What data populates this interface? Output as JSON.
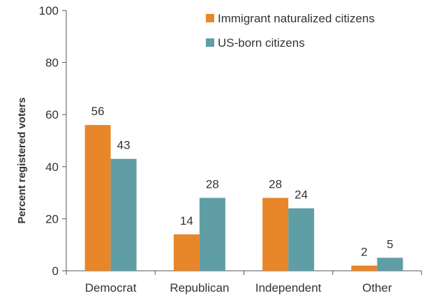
{
  "chart_data": {
    "type": "bar",
    "categories": [
      "Democrat",
      "Republican",
      "Independent",
      "Other"
    ],
    "series": [
      {
        "name": "Immigrant naturalized citizens",
        "values": [
          56,
          14,
          28,
          2
        ],
        "color": "#e8862a"
      },
      {
        "name": "US-born citizens",
        "values": [
          43,
          28,
          24,
          5
        ],
        "color": "#5f9ea5"
      }
    ],
    "ylabel": "Percent registered voters",
    "xlabel": "",
    "ylim": [
      0,
      100
    ],
    "yticks": [
      "0",
      "20",
      "40",
      "60",
      "80",
      "100"
    ],
    "data_labels": [
      [
        "56",
        "14",
        "28",
        "2"
      ],
      [
        "43",
        "28",
        "24",
        "5"
      ]
    ],
    "grid": false,
    "legend_position": "top-right"
  }
}
